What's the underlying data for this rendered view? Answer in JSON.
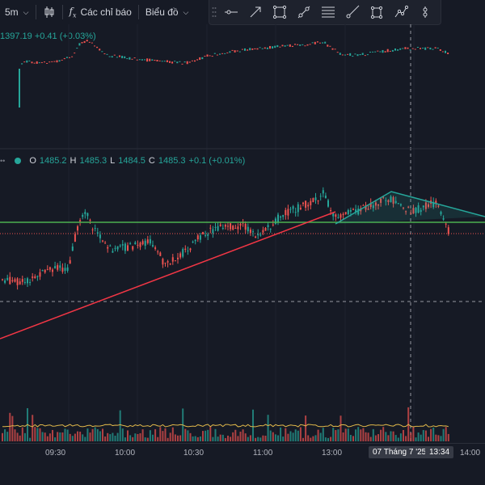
{
  "toolbar": {
    "interval": "5m",
    "indicators_label": "Các chỉ báo",
    "chart_type_label": "Biểu đồ"
  },
  "top_legend": "1397.19 +0.41 (+0.03%)",
  "ohlc": {
    "o_key": "O",
    "o_val": "1485.2",
    "h_key": "H",
    "h_val": "1485.3",
    "l_key": "L",
    "l_val": "1484.5",
    "c_key": "C",
    "c_val": "1485.3",
    "change": "+0.1 (+0.01%)"
  },
  "xaxis": {
    "ticks": [
      "09:30",
      "10:00",
      "10:30",
      "11:00",
      "13:00",
      "14:00"
    ],
    "date_badge": "07 Tháng 7 '25",
    "time_badge": "13:34"
  },
  "colors": {
    "up": "#26a69a",
    "down": "#ef5350",
    "support": "#4caf50",
    "trend": "#f23645",
    "triangle": "#26a69a",
    "volume_ma": "#e0b84a"
  },
  "draw_tools": [
    "horizontal-line-icon",
    "arrow-icon",
    "rectangle-icon",
    "trend-line-icon",
    "fib-icon",
    "ray-icon",
    "measure-icon",
    "position-icon",
    "brush-icon"
  ]
}
